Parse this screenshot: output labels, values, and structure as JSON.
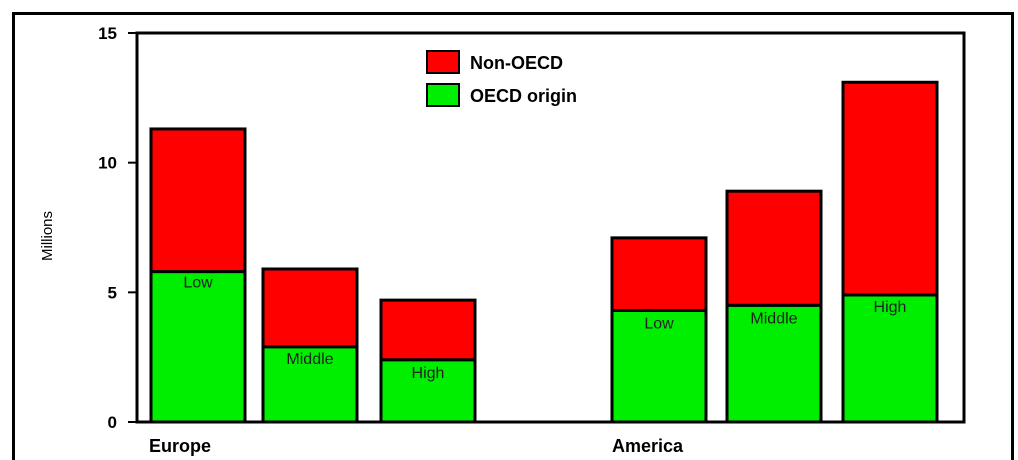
{
  "chart_data": {
    "type": "bar",
    "stacked": true,
    "ylabel": "Millions",
    "ylim": [
      0,
      15
    ],
    "yticks": [
      "0",
      "5",
      "10",
      "15"
    ],
    "groups": [
      "Europe",
      "America"
    ],
    "categories": [
      "Low",
      "Middle",
      "High",
      "Low",
      "Middle",
      "High"
    ],
    "category_group": [
      "Europe",
      "Europe",
      "Europe",
      "America",
      "America",
      "America"
    ],
    "series": [
      {
        "name": "OECD origin",
        "color": "#00ee00",
        "values": [
          5.8,
          2.9,
          2.4,
          4.3,
          4.5,
          4.9
        ]
      },
      {
        "name": "Non-OECD",
        "color": "#ff0000",
        "values": [
          5.5,
          3.0,
          2.3,
          2.8,
          4.4,
          8.2
        ]
      }
    ],
    "legend_position": "top-center",
    "grid": false
  }
}
